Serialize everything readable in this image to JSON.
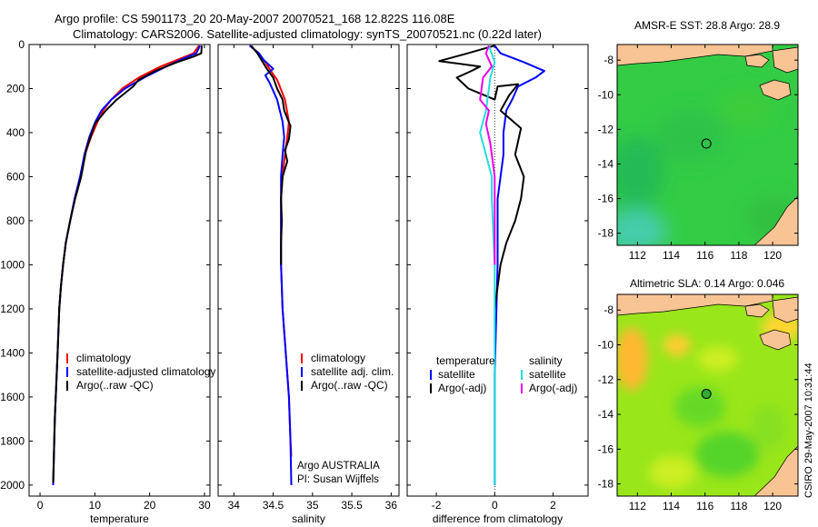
{
  "header": {
    "line1": "Argo profile: CS 5901173_20 20-May-2007 20070521_168 12.822S 116.08E",
    "line2": "Climatology: CARS2006. Satellite-adjusted climatology: synTS_20070521.nc (0.22d later)"
  },
  "side_label": "CSIRO 29-May-2007 10:31:44",
  "colors": {
    "red": "#ff0000",
    "blue": "#0000ff",
    "black": "#000000",
    "cyan": "#22dddd",
    "magenta": "#ee00ee",
    "land": "#f9c493",
    "sst_sea": "#33cc44",
    "sla_sea": "#99e61a"
  },
  "chart_data": [
    {
      "id": "temperature",
      "type": "line",
      "xlabel": "temperature",
      "ylabel": "",
      "xlim": [
        -2,
        31
      ],
      "ylim": [
        2050,
        0
      ],
      "y_reversed": true,
      "xticks": [
        0,
        10,
        20,
        30
      ],
      "yticks": [
        0,
        200,
        400,
        600,
        800,
        1000,
        1200,
        1400,
        1600,
        1800,
        2000
      ],
      "series": [
        {
          "name": "climatology",
          "color": "red",
          "x": [
            29,
            28,
            26,
            22,
            18,
            15,
            13,
            11.5,
            10.5,
            9.3,
            8.2,
            7.4,
            6.3,
            5.5,
            4.7,
            4.2,
            3.8,
            3.5,
            3.2,
            2.7,
            2.4
          ],
          "y": [
            5,
            40,
            60,
            100,
            150,
            200,
            250,
            300,
            350,
            420,
            500,
            600,
            700,
            800,
            900,
            1000,
            1100,
            1200,
            1400,
            1700,
            2000
          ]
        },
        {
          "name": "satellite-adjusted climatology",
          "color": "blue",
          "x": [
            29.2,
            28.5,
            26.5,
            23,
            19,
            15.5,
            13,
            11.2,
            10.1,
            9,
            8.1,
            7.3,
            6.3,
            5.5,
            4.7,
            4.2,
            3.8,
            3.5,
            3.2,
            2.7,
            2.4
          ],
          "y": [
            5,
            40,
            60,
            100,
            150,
            200,
            250,
            300,
            350,
            420,
            500,
            600,
            700,
            800,
            900,
            1000,
            1100,
            1200,
            1400,
            1700,
            2000
          ]
        },
        {
          "name": "Argo(..raw -QC)",
          "color": "black",
          "x": [
            29.5,
            29.4,
            28,
            25,
            21,
            18,
            17,
            14,
            12,
            10,
            8.4,
            7.5,
            6.4,
            5.5,
            4.7,
            4.2,
            3.8,
            3.5,
            3.2,
            2.7,
            2.4
          ],
          "y": [
            5,
            40,
            55,
            80,
            120,
            160,
            190,
            250,
            300,
            360,
            480,
            600,
            700,
            800,
            900,
            1000,
            1100,
            1200,
            1400,
            1700,
            1990
          ]
        }
      ],
      "legend": [
        "climatology",
        "satellite-adjusted climatology",
        "Argo(..raw -QC)"
      ]
    },
    {
      "id": "salinity",
      "type": "line",
      "xlabel": "salinity",
      "ylabel": "",
      "xlim": [
        33.8,
        36.1
      ],
      "ylim": [
        2050,
        0
      ],
      "y_reversed": true,
      "xticks": [
        34,
        34.5,
        35,
        35.5,
        36
      ],
      "series": [
        {
          "name": "climatology",
          "color": "red",
          "x": [
            34.22,
            34.3,
            34.4,
            34.47,
            34.55,
            34.65,
            34.7,
            34.68,
            34.65,
            34.62,
            34.6,
            34.6,
            34.6,
            34.6,
            34.62,
            34.66,
            34.7,
            34.72,
            34.73
          ],
          "y": [
            5,
            40,
            80,
            120,
            160,
            250,
            350,
            420,
            500,
            600,
            700,
            800,
            900,
            1000,
            1200,
            1400,
            1600,
            1800,
            1870
          ]
        },
        {
          "name": "satellite adj. clim.",
          "color": "blue",
          "x": [
            34.2,
            34.32,
            34.38,
            34.5,
            34.4,
            34.45,
            34.55,
            34.62,
            34.64,
            34.62,
            34.6,
            34.6,
            34.6,
            34.6,
            34.6,
            34.62,
            34.66,
            34.7,
            34.72,
            34.73
          ],
          "y": [
            5,
            40,
            70,
            110,
            140,
            170,
            250,
            350,
            420,
            500,
            600,
            700,
            800,
            900,
            1000,
            1200,
            1400,
            1600,
            1800,
            2000
          ]
        },
        {
          "name": "Argo(..raw -QC)",
          "color": "black",
          "x": [
            34.22,
            34.3,
            34.35,
            34.42,
            34.5,
            34.55,
            34.62,
            34.64,
            34.72,
            34.7,
            34.65,
            34.68,
            34.62,
            34.6,
            34.61,
            34.6,
            34.6
          ],
          "y": [
            5,
            40,
            70,
            110,
            150,
            200,
            250,
            300,
            370,
            430,
            480,
            530,
            600,
            700,
            800,
            900,
            1000
          ]
        }
      ],
      "legend": [
        "climatology",
        "satellite adj. clim.",
        "Argo(..raw -QC)"
      ],
      "annotations": [
        "Argo AUSTRALIA",
        "PI: Susan Wijffels"
      ]
    },
    {
      "id": "difference",
      "type": "line",
      "xlabel": "difference from climatology",
      "ylabel": "",
      "xlim": [
        -3,
        3.2
      ],
      "ylim": [
        2050,
        0
      ],
      "y_reversed": true,
      "xticks": [
        -2,
        0,
        2
      ],
      "series": [
        {
          "name": "temperature satellite",
          "color": "blue",
          "x": [
            0.0,
            0.2,
            1.0,
            1.7,
            1.4,
            0.8,
            0.6,
            0.4,
            0.3,
            0.3,
            0.2,
            0.1,
            0.1,
            0.1,
            0.0,
            0.0
          ],
          "y": [
            5,
            40,
            80,
            120,
            150,
            190,
            250,
            300,
            400,
            500,
            600,
            700,
            800,
            1000,
            1500,
            2000
          ]
        },
        {
          "name": "temperature Argo(-adj)",
          "color": "black",
          "x": [
            0.0,
            -1.2,
            -1.9,
            -0.5,
            -0.8,
            -1.3,
            -0.9,
            0.0,
            0.1,
            0.8,
            0.5,
            0.2,
            0.9,
            0.7,
            1.0,
            0.9,
            0.7,
            0.4,
            0.2,
            0.0
          ],
          "y": [
            5,
            50,
            75,
            100,
            120,
            150,
            200,
            250,
            190,
            180,
            230,
            300,
            380,
            500,
            600,
            700,
            800,
            900,
            1000,
            1200
          ]
        },
        {
          "name": "salinity satellite",
          "color": "cyan",
          "x": [
            -0.2,
            0.0,
            -0.15,
            -0.3,
            -0.5,
            -0.3,
            -0.1,
            -0.1,
            0.0,
            0.0
          ],
          "y": [
            5,
            80,
            150,
            300,
            400,
            500,
            600,
            700,
            1000,
            2000
          ]
        },
        {
          "name": "salinity Argo(-adj)",
          "color": "magenta",
          "x": [
            -0.2,
            -0.3,
            -0.1,
            -0.4,
            -0.5,
            -0.2,
            -0.3,
            -0.15,
            0.0,
            0.0
          ],
          "y": [
            5,
            40,
            100,
            150,
            250,
            300,
            360,
            450,
            600,
            1000
          ]
        }
      ],
      "legend": {
        "headers": [
          "temperature",
          "salinity"
        ],
        "items": [
          "satellite",
          "Argo(-adj)",
          "satellite",
          "Argo(-adj)"
        ]
      }
    },
    {
      "id": "sst_map",
      "type": "heatmap",
      "title": "AMSR-E SST: 28.8 Argo: 28.9",
      "xlim": [
        110.8,
        121.5
      ],
      "ylim": [
        -18.7,
        -7.1
      ],
      "xticks": [
        112,
        114,
        116,
        118,
        120
      ],
      "yticks": [
        -8,
        -10,
        -12,
        -14,
        -16,
        -18
      ],
      "marker": {
        "lon": 116.08,
        "lat": -12.822,
        "filled": false
      }
    },
    {
      "id": "sla_map",
      "type": "heatmap",
      "title": "Altimetric SLA: 0.14 Argo: 0.046",
      "xlim": [
        110.8,
        121.5
      ],
      "ylim": [
        -18.7,
        -7.1
      ],
      "xticks": [
        112,
        114,
        116,
        118,
        120
      ],
      "yticks": [
        -8,
        -10,
        -12,
        -14,
        -16,
        -18
      ],
      "marker": {
        "lon": 116.08,
        "lat": -12.822,
        "filled": true
      }
    }
  ]
}
